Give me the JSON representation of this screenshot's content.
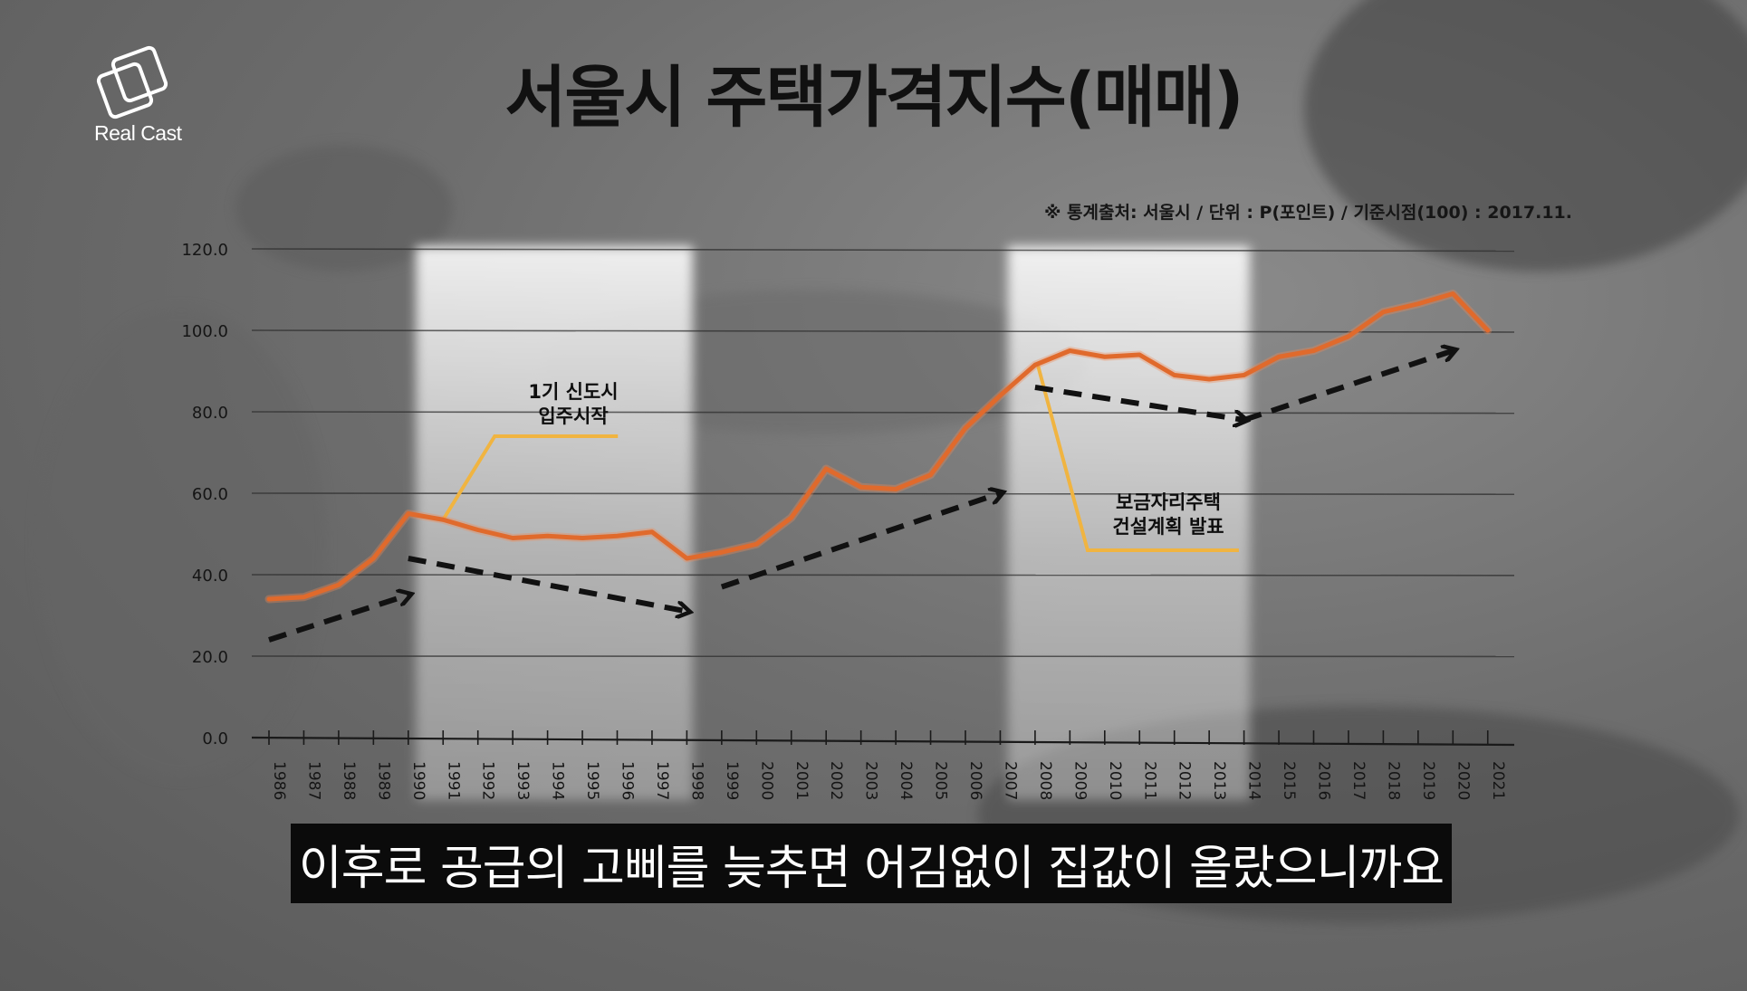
{
  "brand": {
    "logo_text": "Real Cast",
    "logo_icon": "overlapping-squares-icon"
  },
  "subtitle": "이후로 공급의 고삐를 늦추면 어김없이 집값이 올랐으니까요",
  "chart_data": {
    "type": "line",
    "title": "서울시 주택가격지수(매매)",
    "source_note": "※ 통계출처: 서울시 / 단위 : P(포인트) / 기준시점(100) : 2017.11.",
    "xlabel": "",
    "ylabel": "",
    "ylim": [
      0,
      120
    ],
    "y_ticks": [
      "0.0",
      "20.0",
      "40.0",
      "60.0",
      "80.0",
      "100.0",
      "120.0"
    ],
    "grid": true,
    "legend": "none",
    "categories": [
      "1986",
      "1987",
      "1988",
      "1989",
      "1990",
      "1991",
      "1992",
      "1993",
      "1994",
      "1995",
      "1996",
      "1997",
      "1998",
      "1999",
      "2000",
      "2001",
      "2002",
      "2003",
      "2004",
      "2005",
      "2006",
      "2007",
      "2008",
      "2009",
      "2010",
      "2011",
      "2012",
      "2013",
      "2014",
      "2015",
      "2016",
      "2017",
      "2018",
      "2019",
      "2020",
      "2021"
    ],
    "series": [
      {
        "values": [
          34,
          34.5,
          37.5,
          44,
          55,
          53.5,
          51,
          49,
          49.5,
          49,
          49.5,
          50.5,
          44,
          45.5,
          47.5,
          54,
          66,
          61.5,
          61,
          64.5,
          76,
          84,
          91.5,
          95,
          93.5,
          94,
          89,
          88,
          89,
          93.5,
          95,
          98.5,
          104.5,
          106.5,
          109,
          100
        ],
        "color": "#e06a2c"
      }
    ],
    "shaded_periods": [
      [
        "1991",
        "1997"
      ],
      [
        "2008",
        "2013"
      ]
    ],
    "annotations": [
      {
        "text_lines": [
          "1기 신도시",
          "입주시작"
        ],
        "anchor_year": "1991",
        "color": "#f0b441"
      },
      {
        "text_lines": [
          "보금자리주택",
          "건설계획 발표"
        ],
        "anchor_year": "2008",
        "color": "#f0b441"
      }
    ],
    "trend_arrows": [
      {
        "from": [
          "1986",
          24
        ],
        "to": [
          "1990",
          35
        ]
      },
      {
        "from": [
          "1990",
          44
        ],
        "to": [
          "1998",
          31
        ]
      },
      {
        "from": [
          "1999",
          37
        ],
        "to": [
          "2007",
          60
        ]
      },
      {
        "from": [
          "2008",
          86
        ],
        "to": [
          "2014",
          78
        ]
      },
      {
        "from": [
          "2014",
          78
        ],
        "to": [
          "2020",
          95
        ]
      }
    ],
    "colors": {
      "line": "#e06a2c",
      "callout": "#f0b441",
      "arrow": "#111111",
      "highlight": "#ffffff"
    }
  }
}
